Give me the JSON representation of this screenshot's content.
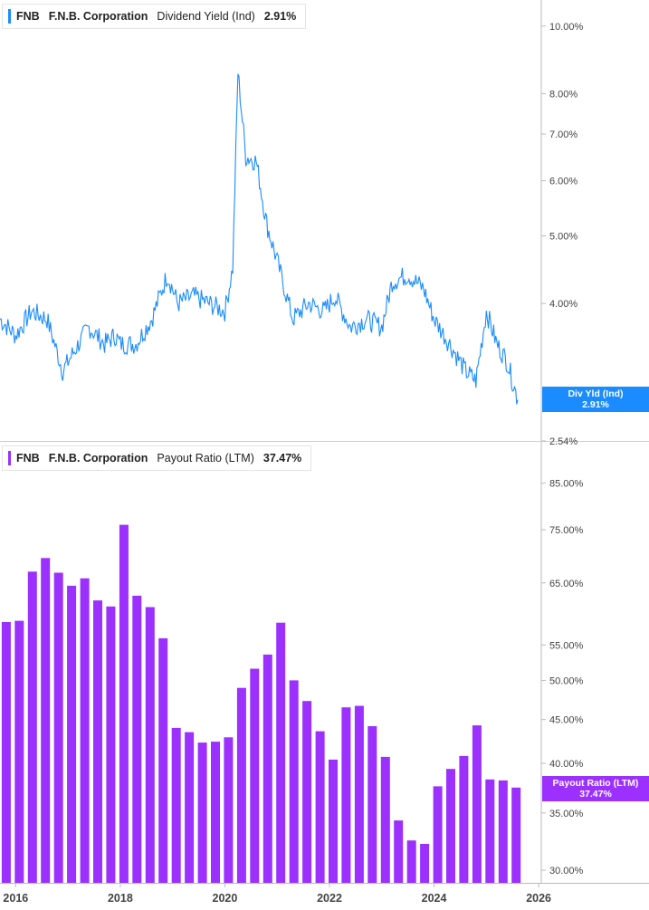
{
  "colors": {
    "yield": "#1a8cff",
    "payout": "#9b30ff",
    "axis": "#bbbbbb",
    "text": "#444444"
  },
  "top_legend": {
    "ticker": "FNB",
    "name": "F.N.B. Corporation",
    "metric": "Dividend Yield (Ind)",
    "value": "2.91%"
  },
  "bottom_legend": {
    "ticker": "FNB",
    "name": "F.N.B. Corporation",
    "metric": "Payout Ratio (LTM)",
    "value": "37.47%"
  },
  "yield_tag": {
    "label": "Div Yld (Ind)",
    "value": "2.91%"
  },
  "payout_tag": {
    "label": "Payout Ratio (LTM)",
    "value": "37.47%"
  },
  "chart_data": [
    {
      "type": "line",
      "series": [
        {
          "name": "Dividend Yield (Ind)",
          "unit": "%"
        }
      ],
      "x": [
        2015.7,
        2016.0,
        2016.3,
        2016.6,
        2016.9,
        2017.1,
        2017.4,
        2017.7,
        2017.9,
        2018.0,
        2018.3,
        2018.6,
        2018.9,
        2019.1,
        2019.4,
        2019.7,
        2020.0,
        2020.15,
        2020.25,
        2020.4,
        2020.6,
        2020.8,
        2021.0,
        2021.3,
        2021.6,
        2021.9,
        2022.1,
        2022.4,
        2022.7,
        2023.0,
        2023.2,
        2023.5,
        2023.8,
        2024.0,
        2024.3,
        2024.6,
        2024.8,
        2025.0,
        2025.2,
        2025.4,
        2025.6
      ],
      "y": [
        3.8,
        3.6,
        3.9,
        3.8,
        3.2,
        3.4,
        3.7,
        3.5,
        3.6,
        3.5,
        3.5,
        3.8,
        4.4,
        4.0,
        4.1,
        4.0,
        3.9,
        4.5,
        8.6,
        6.5,
        6.4,
        5.2,
        4.6,
        3.8,
        4.0,
        3.9,
        4.1,
        3.7,
        3.8,
        3.7,
        4.3,
        4.4,
        4.2,
        3.8,
        3.5,
        3.2,
        3.1,
        3.9,
        3.5,
        3.3,
        2.91
      ],
      "yticks": [
        "10.00%",
        "8.00%",
        "7.00%",
        "6.00%",
        "5.00%",
        "4.00%",
        "2.54%"
      ],
      "ytick_values": [
        10,
        8,
        7,
        6,
        5,
        4,
        2.54
      ],
      "ylim": [
        2.54,
        10.9
      ],
      "yscale": "log",
      "xlabel": "",
      "ylabel": ""
    },
    {
      "type": "bar",
      "series": [
        {
          "name": "Payout Ratio (LTM)",
          "unit": "%"
        }
      ],
      "x": [
        2015.75,
        2016.0,
        2016.25,
        2016.5,
        2016.75,
        2017.0,
        2017.25,
        2017.5,
        2017.75,
        2018.0,
        2018.25,
        2018.5,
        2018.75,
        2019.0,
        2019.25,
        2019.5,
        2019.75,
        2020.0,
        2020.25,
        2020.5,
        2020.75,
        2021.0,
        2021.25,
        2021.5,
        2021.75,
        2022.0,
        2022.25,
        2022.5,
        2022.75,
        2023.0,
        2023.25,
        2023.5,
        2023.75,
        2024.0,
        2024.25,
        2024.5,
        2024.75,
        2025.0,
        2025.25,
        2025.5
      ],
      "values": [
        58.5,
        58.7,
        67.0,
        69.5,
        66.8,
        64.5,
        65.8,
        62.0,
        61.0,
        76.0,
        62.8,
        60.9,
        56.0,
        44.0,
        43.5,
        42.3,
        42.4,
        42.9,
        49.0,
        51.6,
        53.6,
        58.4,
        50.0,
        47.3,
        43.6,
        40.4,
        46.5,
        46.7,
        44.2,
        40.7,
        34.3,
        32.5,
        32.2,
        37.6,
        39.4,
        40.8,
        44.3,
        38.3,
        38.2,
        37.47
      ],
      "yticks": [
        "85.00%",
        "75.00%",
        "65.00%",
        "55.00%",
        "50.00%",
        "45.00%",
        "40.00%",
        "35.00%",
        "30.00%"
      ],
      "ytick_values": [
        85,
        75,
        65,
        55,
        50,
        45,
        40,
        35,
        30
      ],
      "ylim": [
        29.0,
        95.0
      ],
      "yscale": "log",
      "xlabel": "",
      "ylabel": ""
    }
  ],
  "x_axis": {
    "ticks": [
      "2016",
      "2018",
      "2020",
      "2022",
      "2024",
      "2026"
    ],
    "tick_values": [
      2016,
      2018,
      2020,
      2022,
      2024,
      2026
    ],
    "range": [
      2015.7,
      2026.05
    ]
  }
}
